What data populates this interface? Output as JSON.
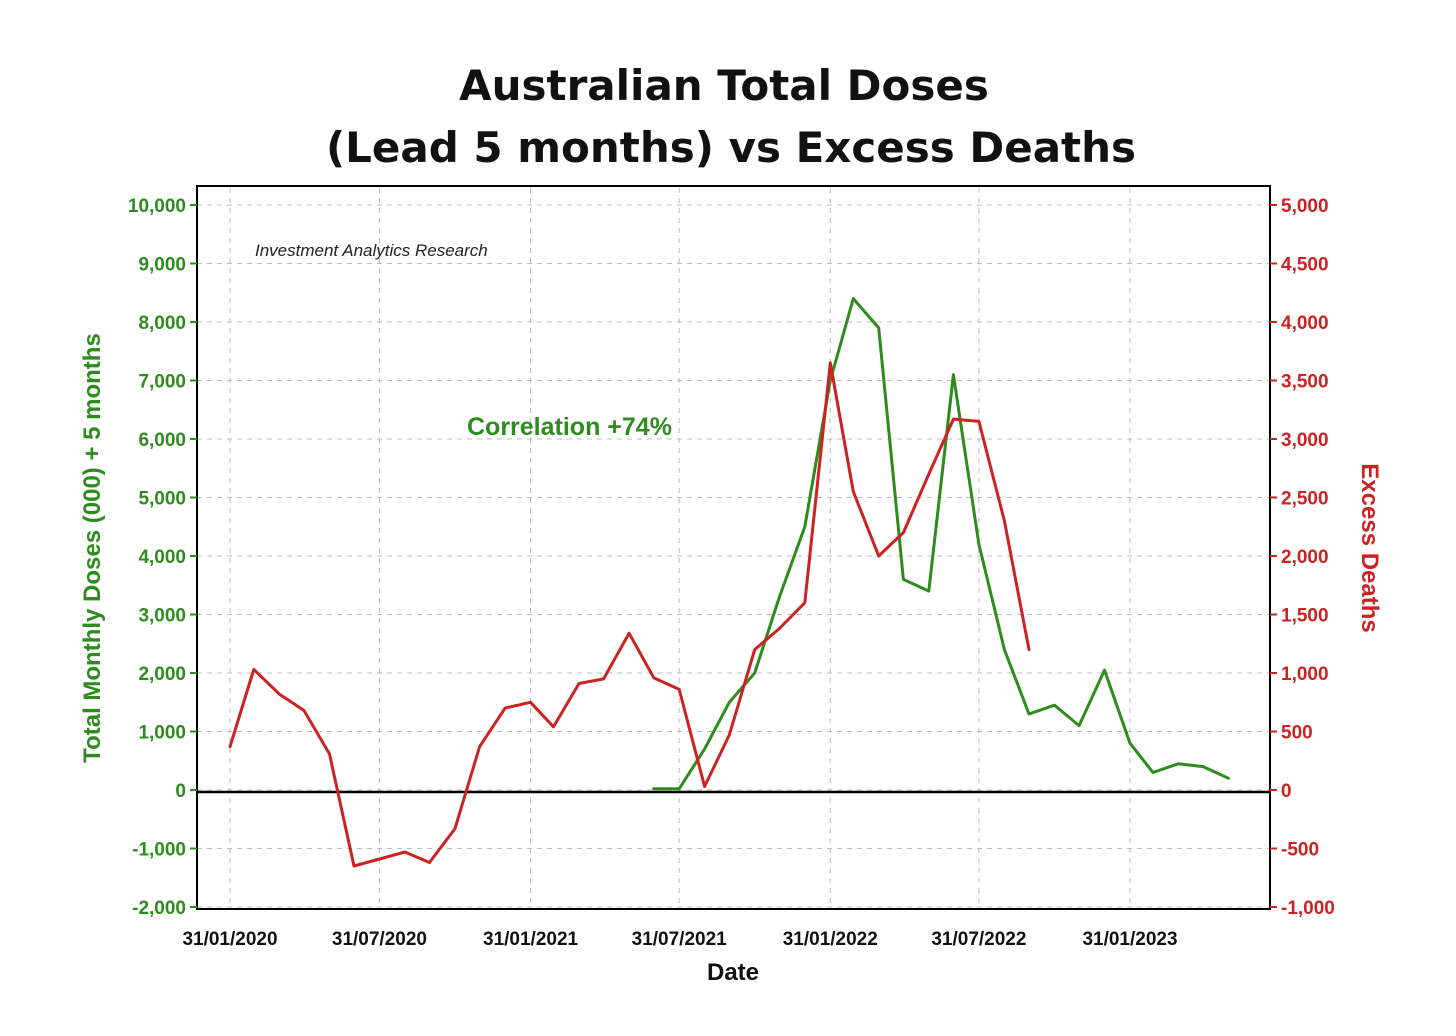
{
  "chart_data": {
    "type": "line",
    "title": [
      "Australian Total Doses",
      "(Lead 5 months) vs Excess Deaths"
    ],
    "xlabel": "Date",
    "ylabel_left": "Total Monthly Doses (000) + 5 months",
    "ylabel_right": "Excess Deaths",
    "source": "Investment Analytics Research",
    "annotation": "Correlation +74%",
    "x_tick_labels": [
      "31/01/2020",
      "31/07/2020",
      "31/01/2021",
      "31/07/2021",
      "31/01/2022",
      "31/07/2022",
      "31/01/2023"
    ],
    "ylim_left": [
      -2000,
      10000
    ],
    "ylim_right": [
      -1000,
      5000
    ],
    "y_ticks_left": [
      "-2,000",
      "-1,000",
      "0",
      "1,000",
      "2,000",
      "3,000",
      "4,000",
      "5,000",
      "6,000",
      "7,000",
      "8,000",
      "9,000",
      "10,000"
    ],
    "y_ticks_right": [
      "-1,000",
      "-500",
      "0",
      "500",
      "1,000",
      "1,500",
      "2,000",
      "2,500",
      "3,000",
      "3,500",
      "4,000",
      "4,500",
      "5,000"
    ],
    "grid": true,
    "legend": "none",
    "colors": {
      "doses": "#2e8b1e",
      "deaths": "#cc2222",
      "zero_line": "#000000"
    },
    "series": [
      {
        "axis": "left",
        "color": "#2e8b1e",
        "points": [
          [
            "2021-06-30",
            20
          ],
          [
            "2021-07-31",
            20
          ],
          [
            "2021-08-31",
            700
          ],
          [
            "2021-09-30",
            1500
          ],
          [
            "2021-10-31",
            2000
          ],
          [
            "2021-11-30",
            3300
          ],
          [
            "2021-12-31",
            4500
          ],
          [
            "2022-01-31",
            7000
          ],
          [
            "2022-02-28",
            8400
          ],
          [
            "2022-03-31",
            7900
          ],
          [
            "2022-04-30",
            3600
          ],
          [
            "2022-05-31",
            3400
          ],
          [
            "2022-06-30",
            7100
          ],
          [
            "2022-07-31",
            4200
          ],
          [
            "2022-08-31",
            2400
          ],
          [
            "2022-09-30",
            1300
          ],
          [
            "2022-10-31",
            1450
          ],
          [
            "2022-11-30",
            1100
          ],
          [
            "2022-12-31",
            2050
          ],
          [
            "2023-01-31",
            800
          ],
          [
            "2023-02-28",
            300
          ],
          [
            "2023-03-31",
            450
          ],
          [
            "2023-04-30",
            400
          ],
          [
            "2023-05-31",
            200
          ]
        ]
      },
      {
        "axis": "right",
        "color": "#cc2222",
        "points": [
          [
            "2020-01-31",
            370
          ],
          [
            "2020-02-29",
            1030
          ],
          [
            "2020-03-31",
            820
          ],
          [
            "2020-04-30",
            680
          ],
          [
            "2020-05-31",
            310
          ],
          [
            "2020-06-30",
            -650
          ],
          [
            "2020-07-31",
            -590
          ],
          [
            "2020-08-31",
            -530
          ],
          [
            "2020-09-30",
            -620
          ],
          [
            "2020-10-31",
            -330
          ],
          [
            "2020-11-30",
            370
          ],
          [
            "2020-12-31",
            700
          ],
          [
            "2021-01-31",
            750
          ],
          [
            "2021-02-28",
            540
          ],
          [
            "2021-03-31",
            910
          ],
          [
            "2021-04-30",
            950
          ],
          [
            "2021-05-31",
            1340
          ],
          [
            "2021-06-30",
            960
          ],
          [
            "2021-07-31",
            860
          ],
          [
            "2021-08-31",
            30
          ],
          [
            "2021-09-30",
            470
          ],
          [
            "2021-10-31",
            1200
          ],
          [
            "2021-11-30",
            1380
          ],
          [
            "2021-12-31",
            1600
          ],
          [
            "2022-01-31",
            3650
          ],
          [
            "2022-02-28",
            2550
          ],
          [
            "2022-03-31",
            2000
          ],
          [
            "2022-04-30",
            2200
          ],
          [
            "2022-05-31",
            2700
          ],
          [
            "2022-06-30",
            3170
          ],
          [
            "2022-07-31",
            3150
          ],
          [
            "2022-08-31",
            2300
          ],
          [
            "2022-09-30",
            1200
          ]
        ]
      }
    ]
  }
}
